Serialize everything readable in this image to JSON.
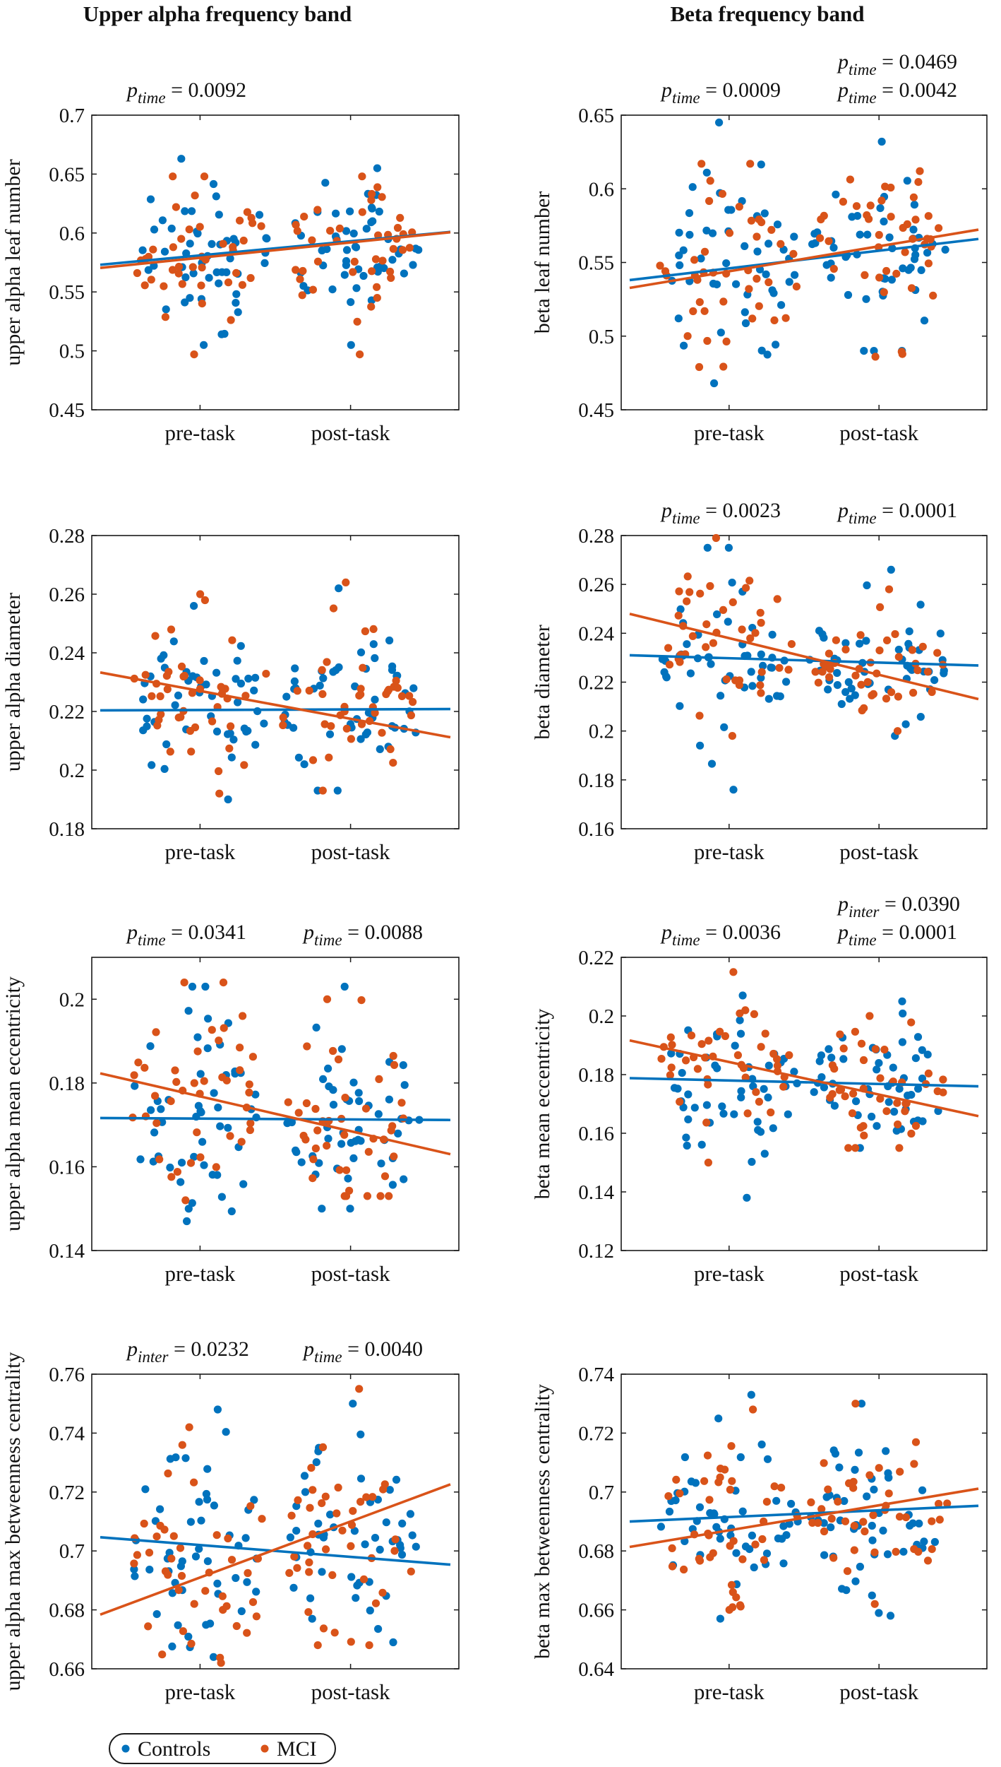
{
  "colors": {
    "controls": "#0072BD",
    "mci": "#D95319",
    "axis": "#1a1a1a",
    "annot": "#111111"
  },
  "column_titles": [
    "Upper alpha frequency band",
    "Beta frequency band"
  ],
  "legend": [
    {
      "label": "Controls",
      "color": "#0072BD"
    },
    {
      "label": "MCI",
      "color": "#D95319"
    }
  ],
  "chart_data": [
    {
      "type": "scatter",
      "panel": "upper-alpha-leaf-number",
      "ylabel": "upper alpha leaf number",
      "categories": [
        "pre-task",
        "post-task"
      ],
      "ylim": [
        0.45,
        0.7
      ],
      "yticks": [
        0.45,
        0.5,
        0.55,
        0.6,
        0.65,
        0.7
      ],
      "ytick_labels": [
        "0.45",
        "0.5",
        "0.55",
        "0.6",
        "0.65",
        "0.7"
      ],
      "series": [
        {
          "name": "Controls",
          "pre": {
            "mean": 0.585,
            "sd": 0.032,
            "min": 0.505,
            "max": 0.663,
            "n": 50
          },
          "post": {
            "mean": 0.592,
            "sd": 0.027,
            "min": 0.505,
            "max": 0.655,
            "n": 50
          },
          "fit": [
            0.581,
            0.593
          ]
        },
        {
          "name": "MCI",
          "pre": {
            "mean": 0.584,
            "sd": 0.031,
            "min": 0.497,
            "max": 0.648,
            "n": 42
          },
          "post": {
            "mean": 0.589,
            "sd": 0.029,
            "min": 0.497,
            "max": 0.648,
            "n": 42
          },
          "fit": [
            0.579,
            0.592
          ]
        }
      ],
      "annotations": [
        {
          "sym": "p",
          "sub": "time",
          "val": "= 0.0092",
          "color": "annot",
          "row": 1,
          "col": 0
        }
      ]
    },
    {
      "type": "scatter",
      "panel": "beta-leaf-number",
      "ylabel": "beta leaf number",
      "categories": [
        "pre-task",
        "post-task"
      ],
      "ylim": [
        0.45,
        0.65
      ],
      "yticks": [
        0.45,
        0.5,
        0.55,
        0.6,
        0.65
      ],
      "ytick_labels": [
        "0.45",
        "0.5",
        "0.55",
        "0.6",
        "0.65"
      ],
      "series": [
        {
          "name": "Controls",
          "pre": {
            "mean": 0.548,
            "sd": 0.035,
            "min": 0.468,
            "max": 0.645,
            "n": 50
          },
          "post": {
            "mean": 0.557,
            "sd": 0.03,
            "min": 0.49,
            "max": 0.632,
            "n": 50
          },
          "fit": [
            0.546,
            0.558
          ]
        },
        {
          "name": "MCI",
          "pre": {
            "mean": 0.546,
            "sd": 0.034,
            "min": 0.479,
            "max": 0.617,
            "n": 42
          },
          "post": {
            "mean": 0.558,
            "sd": 0.03,
            "min": 0.486,
            "max": 0.612,
            "n": 42
          },
          "fit": [
            0.544,
            0.561
          ]
        }
      ],
      "annotations": [
        {
          "sym": "p",
          "sub": "time",
          "val": "= 0.0009",
          "color": "annot",
          "row": 1,
          "col": 0
        },
        {
          "sym": "p",
          "sub": "time",
          "val": "= 0.0469",
          "color": "controls",
          "row": 0,
          "col": 1
        },
        {
          "sym": "p",
          "sub": "time",
          "val": "= 0.0042",
          "color": "mci",
          "row": 1,
          "col": 1
        }
      ]
    },
    {
      "type": "scatter",
      "panel": "upper-alpha-diameter",
      "ylabel": "upper alpha diameter",
      "categories": [
        "pre-task",
        "post-task"
      ],
      "ylim": [
        0.18,
        0.28
      ],
      "yticks": [
        0.18,
        0.2,
        0.22,
        0.24,
        0.26,
        0.28
      ],
      "ytick_labels": [
        "0.18",
        "0.2",
        "0.22",
        "0.24",
        "0.26",
        "0.28"
      ],
      "series": [
        {
          "name": "Controls",
          "pre": {
            "mean": 0.221,
            "sd": 0.014,
            "min": 0.19,
            "max": 0.256,
            "n": 50
          },
          "post": {
            "mean": 0.221,
            "sd": 0.013,
            "min": 0.193,
            "max": 0.262,
            "n": 50
          },
          "fit": [
            0.2205,
            0.2207
          ]
        },
        {
          "name": "MCI",
          "pre": {
            "mean": 0.225,
            "sd": 0.014,
            "min": 0.192,
            "max": 0.26,
            "n": 42
          },
          "post": {
            "mean": 0.22,
            "sd": 0.013,
            "min": 0.193,
            "max": 0.264,
            "n": 42
          },
          "fit": [
            0.227,
            0.2175
          ]
        }
      ],
      "annotations": []
    },
    {
      "type": "scatter",
      "panel": "beta-diameter",
      "ylabel": "beta diameter",
      "categories": [
        "pre-task",
        "post-task"
      ],
      "ylim": [
        0.16,
        0.28
      ],
      "yticks": [
        0.16,
        0.18,
        0.2,
        0.22,
        0.24,
        0.26,
        0.28
      ],
      "ytick_labels": [
        "0.16",
        "0.18",
        "0.2",
        "0.22",
        "0.24",
        "0.26",
        "0.28"
      ],
      "series": [
        {
          "name": "Controls",
          "pre": {
            "mean": 0.229,
            "sd": 0.017,
            "min": 0.176,
            "max": 0.275,
            "n": 50
          },
          "post": {
            "mean": 0.229,
            "sd": 0.014,
            "min": 0.198,
            "max": 0.266,
            "n": 50
          },
          "fit": [
            0.2298,
            0.228
          ]
        },
        {
          "name": "MCI",
          "pre": {
            "mean": 0.237,
            "sd": 0.015,
            "min": 0.198,
            "max": 0.279,
            "n": 42
          },
          "post": {
            "mean": 0.227,
            "sd": 0.013,
            "min": 0.2,
            "max": 0.258,
            "n": 42
          },
          "fit": [
            0.238,
            0.223
          ]
        }
      ],
      "annotations": [
        {
          "sym": "p",
          "sub": "time",
          "val": "= 0.0023",
          "color": "annot",
          "row": 1,
          "col": 0
        },
        {
          "sym": "p",
          "sub": "time",
          "val": "= 0.0001",
          "color": "mci",
          "row": 1,
          "col": 1
        }
      ]
    },
    {
      "type": "scatter",
      "panel": "upper-alpha-mean-eccentricity",
      "ylabel": "upper alpha mean eccentricity",
      "categories": [
        "pre-task",
        "post-task"
      ],
      "ylim": [
        0.14,
        0.21
      ],
      "yticks": [
        0.14,
        0.16,
        0.18,
        0.2
      ],
      "ytick_labels": [
        "0.14",
        "0.16",
        "0.18",
        "0.2"
      ],
      "series": [
        {
          "name": "Controls",
          "pre": {
            "mean": 0.172,
            "sd": 0.012,
            "min": 0.147,
            "max": 0.203,
            "n": 50
          },
          "post": {
            "mean": 0.171,
            "sd": 0.011,
            "min": 0.15,
            "max": 0.203,
            "n": 50
          },
          "fit": [
            0.1715,
            0.1713
          ]
        },
        {
          "name": "MCI",
          "pre": {
            "mean": 0.176,
            "sd": 0.012,
            "min": 0.152,
            "max": 0.204,
            "n": 42
          },
          "post": {
            "mean": 0.171,
            "sd": 0.011,
            "min": 0.153,
            "max": 0.2,
            "n": 42
          },
          "fit": [
            0.1768,
            0.1685
          ]
        }
      ],
      "annotations": [
        {
          "sym": "p",
          "sub": "time",
          "val": "= 0.0341",
          "color": "annot",
          "row": 1,
          "col": 0
        },
        {
          "sym": "p",
          "sub": "time",
          "val": "= 0.0088",
          "color": "mci",
          "row": 1,
          "col": 1
        }
      ]
    },
    {
      "type": "scatter",
      "panel": "beta-mean-eccentricity",
      "ylabel": "beta mean eccentricity",
      "categories": [
        "pre-task",
        "post-task"
      ],
      "ylim": [
        0.12,
        0.22
      ],
      "yticks": [
        0.12,
        0.14,
        0.16,
        0.18,
        0.2,
        0.22
      ],
      "ytick_labels": [
        "0.12",
        "0.14",
        "0.16",
        "0.18",
        "0.2",
        "0.22"
      ],
      "series": [
        {
          "name": "Controls",
          "pre": {
            "mean": 0.178,
            "sd": 0.013,
            "min": 0.138,
            "max": 0.207,
            "n": 50
          },
          "post": {
            "mean": 0.177,
            "sd": 0.011,
            "min": 0.155,
            "max": 0.205,
            "n": 50
          },
          "fit": [
            0.178,
            0.1768
          ]
        },
        {
          "name": "MCI",
          "pre": {
            "mean": 0.183,
            "sd": 0.012,
            "min": 0.15,
            "max": 0.215,
            "n": 42
          },
          "post": {
            "mean": 0.176,
            "sd": 0.011,
            "min": 0.155,
            "max": 0.2,
            "n": 42
          },
          "fit": [
            0.1843,
            0.1732
          ]
        }
      ],
      "annotations": [
        {
          "sym": "p",
          "sub": "time",
          "val": "= 0.0036",
          "color": "annot",
          "row": 1,
          "col": 0
        },
        {
          "sym": "p",
          "sub": "inter",
          "val": "= 0.0390",
          "color": "annot",
          "row": 0,
          "col": 1
        },
        {
          "sym": "p",
          "sub": "time",
          "val": "= 0.0001",
          "color": "mci",
          "row": 1,
          "col": 1
        }
      ]
    },
    {
      "type": "scatter",
      "panel": "upper-alpha-max-betweenness-centrality",
      "ylabel": "upper alpha max betweenness centrality",
      "categories": [
        "pre-task",
        "post-task"
      ],
      "ylim": [
        0.66,
        0.76
      ],
      "yticks": [
        0.66,
        0.68,
        0.7,
        0.72,
        0.74,
        0.76
      ],
      "ytick_labels": [
        "0.66",
        "0.68",
        "0.7",
        "0.72",
        "0.74",
        "0.76"
      ],
      "series": [
        {
          "name": "Controls",
          "pre": {
            "mean": 0.701,
            "sd": 0.019,
            "min": 0.664,
            "max": 0.748,
            "n": 50
          },
          "post": {
            "mean": 0.699,
            "sd": 0.018,
            "min": 0.669,
            "max": 0.75,
            "n": 50
          },
          "fit": [
            0.702,
            0.698
          ]
        },
        {
          "name": "MCI",
          "pre": {
            "mean": 0.696,
            "sd": 0.018,
            "min": 0.662,
            "max": 0.742,
            "n": 42
          },
          "post": {
            "mean": 0.705,
            "sd": 0.018,
            "min": 0.668,
            "max": 0.755,
            "n": 42
          },
          "fit": [
            0.691,
            0.71
          ]
        }
      ],
      "annotations": [
        {
          "sym": "p",
          "sub": "inter",
          "val": "= 0.0232",
          "color": "annot",
          "row": 1,
          "col": 0
        },
        {
          "sym": "p",
          "sub": "time",
          "val": "= 0.0040",
          "color": "mci",
          "row": 1,
          "col": 1
        }
      ]
    },
    {
      "type": "scatter",
      "panel": "beta-max-betweenness-centrality",
      "ylabel": "beta max betweenness centrality",
      "categories": [
        "pre-task",
        "post-task"
      ],
      "ylim": [
        0.64,
        0.74
      ],
      "yticks": [
        0.64,
        0.66,
        0.68,
        0.7,
        0.72,
        0.74
      ],
      "ytick_labels": [
        "0.64",
        "0.66",
        "0.68",
        "0.7",
        "0.72",
        "0.74"
      ],
      "series": [
        {
          "name": "Controls",
          "pre": {
            "mean": 0.692,
            "sd": 0.016,
            "min": 0.657,
            "max": 0.733,
            "n": 50
          },
          "post": {
            "mean": 0.694,
            "sd": 0.014,
            "min": 0.658,
            "max": 0.73,
            "n": 50
          },
          "fit": [
            0.6915,
            0.6938
          ]
        },
        {
          "name": "MCI",
          "pre": {
            "mean": 0.689,
            "sd": 0.015,
            "min": 0.66,
            "max": 0.728,
            "n": 42
          },
          "post": {
            "mean": 0.694,
            "sd": 0.014,
            "min": 0.662,
            "max": 0.73,
            "n": 42
          },
          "fit": [
            0.687,
            0.6955
          ]
        }
      ],
      "annotations": []
    }
  ]
}
